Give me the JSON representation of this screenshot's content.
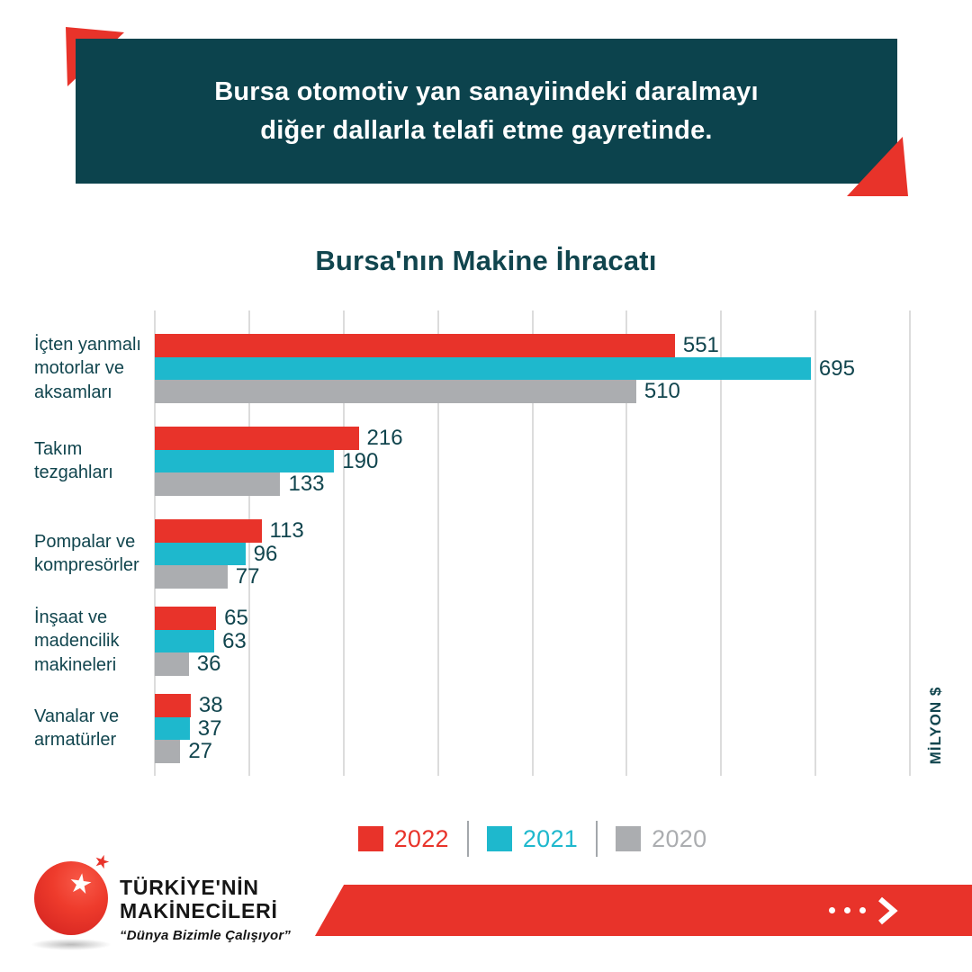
{
  "header": {
    "line1": "Bursa otomotiv yan sanayiindeki daralmayı",
    "line2": "diğer dallarla telafi etme gayretinde."
  },
  "chart_data": {
    "type": "bar",
    "orientation": "horizontal",
    "title": "Bursa'nın Makine İhracatı",
    "unit": "MİLYON $",
    "categories": [
      "İçten yanmalı motorlar ve aksamları",
      "Takım tezgahları",
      "Pompalar ve kompresörler",
      "İnşaat ve madencilik makineleri",
      "Vanalar ve armatürler"
    ],
    "categories_lines": [
      [
        "İçten yanmalı",
        "motorlar ve",
        "aksamları"
      ],
      [
        "Takım",
        "tezgahları"
      ],
      [
        "Pompalar ve",
        "kompresörler"
      ],
      [
        "İnşaat ve",
        "madencilik",
        "makineleri"
      ],
      [
        "Vanalar ve",
        "armatürler"
      ]
    ],
    "series": [
      {
        "name": "2022",
        "color": "#e8332a",
        "values": [
          551,
          216,
          113,
          65,
          38
        ]
      },
      {
        "name": "2021",
        "color": "#1eb8cd",
        "values": [
          695,
          190,
          96,
          63,
          37
        ]
      },
      {
        "name": "2020",
        "color": "#abadb0",
        "values": [
          510,
          133,
          77,
          36,
          27
        ]
      }
    ],
    "xlim": [
      0,
      800
    ],
    "gridline_step": 100,
    "grid": "vertical-only",
    "value_labels": true,
    "legend_position": "bottom"
  },
  "colors": {
    "header_box": "#0c434d",
    "accent_red": "#e8332a",
    "text_teal": "#11454e",
    "gridline": "#dcdcdc",
    "gray_series": "#abadb0",
    "cyan_series": "#1eb8cd"
  },
  "footer": {
    "logo": {
      "line1": "TÜRKİYE'NİN",
      "line2": "MAKİNECİLERİ",
      "tagline": "“Dünya Bizimle Çalışıyor”",
      "star_white": "★",
      "star_red": "★"
    }
  }
}
